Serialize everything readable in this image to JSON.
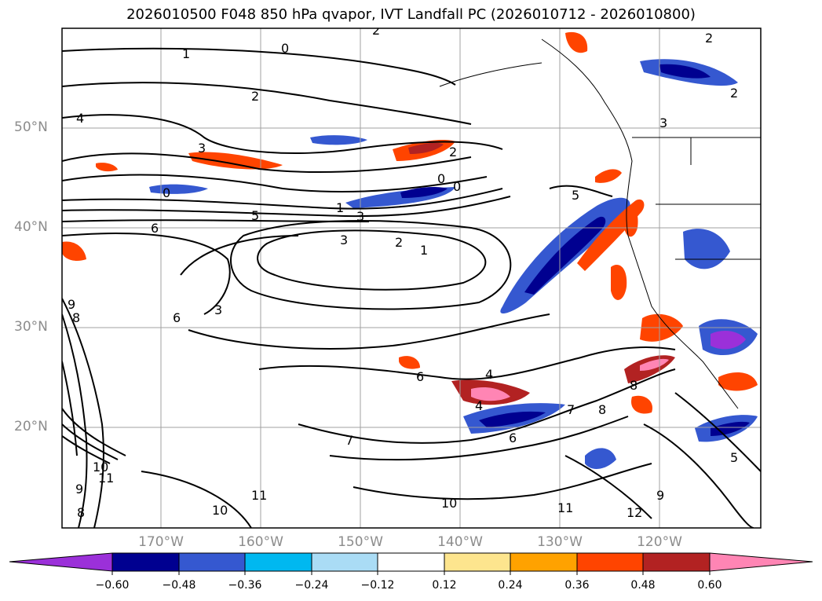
{
  "title": "2026010500 F048 850 hPa qvapor, IVT Landfall PC (2026010712 - 2026010800)",
  "lat_labels": [
    "50°N",
    "40°N",
    "30°N",
    "20°N"
  ],
  "lon_labels": [
    "170°W",
    "160°W",
    "150°W",
    "140°W",
    "130°W",
    "120°W"
  ],
  "colorbar": {
    "ticks": [
      "−0.60",
      "−0.48",
      "−0.36",
      "−0.24",
      "−0.12",
      "0.12",
      "0.24",
      "0.36",
      "0.48",
      "0.60"
    ],
    "colors": [
      "#9b30d9",
      "#000090",
      "#3558d0",
      "#00b8f0",
      "#aadcf5",
      "#ffffff",
      "#fde58e",
      "#ffa200",
      "#ff4400",
      "#b22222",
      "#ff85b4"
    ]
  },
  "contour_labels": [
    "2",
    "1",
    "0",
    "2",
    "2",
    "4",
    "3",
    "0",
    "2",
    "0",
    "0",
    "5",
    "1",
    "3",
    "6",
    "3",
    "2",
    "1",
    "5",
    "3",
    "6",
    "9",
    "8",
    "4",
    "6",
    "4",
    "6",
    "7",
    "8",
    "8",
    "7",
    "10",
    "11",
    "9",
    "10",
    "11",
    "10",
    "12",
    "11",
    "8",
    "9",
    "5",
    "2",
    "3"
  ]
}
